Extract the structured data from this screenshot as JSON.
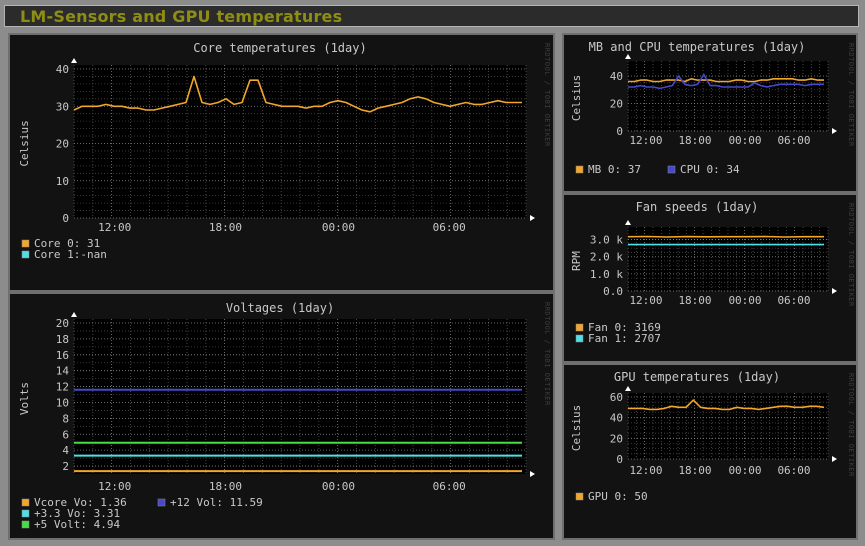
{
  "page": {
    "title": "LM-Sensors and GPU temperatures"
  },
  "colors": {
    "background": "#121212",
    "plot_bg": "#000000",
    "grid": "#9a9a9a",
    "text": "#c8c8c8",
    "title": "#8e8e14",
    "orange": "#f2a62a",
    "cyan": "#4fe0e6",
    "blue": "#4848cc",
    "green": "#44dd44"
  },
  "watermark": "RRDTOOL / TOBI OETIKER",
  "chart_data": [
    {
      "id": "core",
      "type": "line",
      "title": "Core temperatures  (1day)",
      "ylabel": "Celsius",
      "xlabel": "",
      "ylim": [
        0,
        40
      ],
      "yticks": [
        "0",
        "10",
        "20",
        "30",
        "40"
      ],
      "xticks": [
        "12:00",
        "18:00",
        "00:00",
        "06:00"
      ],
      "grid": true,
      "series": [
        {
          "name": "Core  0",
          "color": "#f2a62a",
          "last": "31",
          "values": [
            29,
            30,
            30,
            30,
            30.5,
            30,
            30,
            29.5,
            29.5,
            29,
            29,
            29.5,
            30,
            30.5,
            31,
            38,
            31,
            30.5,
            31,
            32,
            30.5,
            31,
            37,
            37,
            31,
            30.5,
            30,
            30,
            30,
            29.5,
            30,
            30,
            31,
            31.5,
            31,
            30,
            29,
            28.5,
            29.5,
            30,
            30.5,
            31,
            32,
            32.5,
            32,
            31,
            30.5,
            30,
            30.5,
            31,
            30.5,
            30.5,
            31,
            31.5,
            31,
            31,
            31
          ]
        },
        {
          "name": "Core  1",
          "color": "#4fe0e6",
          "last": "-nan",
          "values": []
        }
      ],
      "legend": [
        {
          "label": "Core  0: 31",
          "color": "#f2a62a"
        },
        {
          "label": "Core  1:-nan",
          "color": "#4fe0e6"
        }
      ]
    },
    {
      "id": "volt",
      "type": "line",
      "title": "Voltages  (1day)",
      "ylabel": "Volts",
      "xlabel": "",
      "ylim": [
        1,
        20
      ],
      "yticks": [
        "2",
        "4",
        "6",
        "8",
        "10",
        "12",
        "14",
        "16",
        "18",
        "20"
      ],
      "xticks": [
        "12:00",
        "18:00",
        "00:00",
        "06:00"
      ],
      "grid": true,
      "series": [
        {
          "name": "Vcore Vo",
          "color": "#f2a62a",
          "last": "1.36",
          "values": [
            1.36,
            1.36
          ]
        },
        {
          "name": "+3.3 Vo",
          "color": "#4fe0e6",
          "last": "3.31",
          "values": [
            3.31,
            3.31
          ]
        },
        {
          "name": "+5 Volt",
          "color": "#44dd44",
          "last": "4.94",
          "values": [
            4.94,
            4.94
          ]
        },
        {
          "name": "+12 Vol",
          "color": "#4848cc",
          "last": "11.59",
          "values": [
            11.59,
            11.59
          ]
        }
      ],
      "legend": [
        {
          "label": "Vcore Vo:  1.36",
          "color": "#f2a62a"
        },
        {
          "label": " +3.3 Vo:  3.31",
          "color": "#4fe0e6"
        },
        {
          "label": " +5 Volt:  4.94",
          "color": "#44dd44"
        },
        {
          "label": " +12 Vol: 11.59",
          "color": "#4848cc"
        }
      ]
    },
    {
      "id": "mbcpu",
      "type": "line",
      "title": "MB and CPU temperatures  (1day)",
      "ylabel": "Celsius",
      "xlabel": "",
      "ylim": [
        0,
        48
      ],
      "yticks": [
        "0",
        "20",
        "40"
      ],
      "xticks": [
        "12:00",
        "18:00",
        "00:00",
        "06:00"
      ],
      "grid": true,
      "series": [
        {
          "name": "MB 0",
          "color": "#f2a62a",
          "last": "37",
          "values": [
            36,
            36,
            37,
            37,
            36,
            36,
            37,
            37,
            37,
            36,
            38,
            37,
            37,
            37,
            36,
            36,
            36,
            37,
            37,
            36,
            36,
            37,
            37,
            38,
            38,
            38,
            38,
            37,
            37,
            38,
            37,
            37
          ]
        },
        {
          "name": "CPU 0",
          "color": "#4848cc",
          "last": "34",
          "values": [
            32,
            32,
            33,
            32,
            32,
            31,
            32,
            33,
            40,
            34,
            33,
            34,
            41,
            33,
            33,
            32,
            32,
            32,
            32,
            32,
            35,
            33,
            32,
            33,
            34,
            34,
            34,
            34,
            33,
            34,
            34,
            34
          ]
        }
      ],
      "legend": [
        {
          "label": "MB 0: 37",
          "color": "#f2a62a"
        },
        {
          "label": "CPU 0: 34",
          "color": "#4848cc"
        }
      ]
    },
    {
      "id": "fan",
      "type": "line",
      "title": "Fan speeds  (1day)",
      "ylabel": "RPM",
      "xlabel": "",
      "ylim": [
        0,
        3500
      ],
      "yticks": [
        "0.0",
        "1.0 k",
        "2.0 k",
        "3.0 k"
      ],
      "xticks": [
        "12:00",
        "18:00",
        "00:00",
        "06:00"
      ],
      "grid": true,
      "series": [
        {
          "name": "Fan 0",
          "color": "#f2a62a",
          "last": "3169",
          "values": [
            3169,
            3180,
            3150,
            3175,
            3160,
            3170,
            3165,
            3180,
            3150,
            3170,
            3169
          ]
        },
        {
          "name": "Fan 1",
          "color": "#4fe0e6",
          "last": "2707",
          "values": [
            2707,
            2707
          ]
        }
      ],
      "legend": [
        {
          "label": "Fan 0: 3169",
          "color": "#f2a62a"
        },
        {
          "label": "Fan 1: 2707",
          "color": "#4fe0e6"
        }
      ]
    },
    {
      "id": "gpu",
      "type": "line",
      "title": "GPU temperatures  (1day)",
      "ylabel": "Celsius",
      "xlabel": "",
      "ylim": [
        0,
        60
      ],
      "yticks": [
        "0",
        "20",
        "40",
        "60"
      ],
      "xticks": [
        "12:00",
        "18:00",
        "00:00",
        "06:00"
      ],
      "grid": true,
      "series": [
        {
          "name": "GPU 0",
          "color": "#f2a62a",
          "last": "50",
          "values": [
            49,
            49,
            49,
            48,
            48,
            49,
            51,
            50,
            50,
            57,
            50,
            49,
            49,
            48,
            48,
            50,
            49,
            49,
            48,
            49,
            50,
            51,
            51,
            50,
            50,
            51,
            51,
            50
          ]
        }
      ],
      "legend": [
        {
          "label": "GPU 0: 50",
          "color": "#f2a62a"
        }
      ]
    }
  ]
}
